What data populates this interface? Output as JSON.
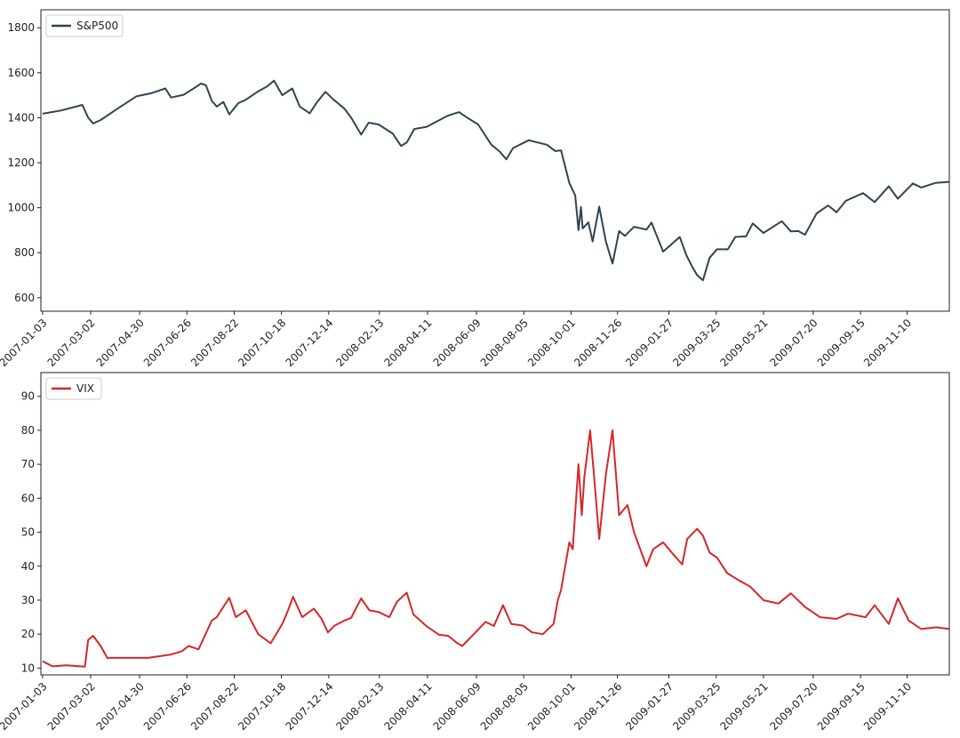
{
  "chart_data": [
    {
      "type": "line",
      "title": "",
      "xlabel": "",
      "ylabel": "",
      "color": "#2f4550",
      "ylim": [
        540,
        1880
      ],
      "yticks": [
        600,
        800,
        1000,
        1200,
        1400,
        1600,
        1800
      ],
      "xlim": [
        "2007-01-01",
        "2009-12-31"
      ],
      "xticks": [
        "2007-01-03",
        "2007-03-02",
        "2007-04-30",
        "2007-06-26",
        "2007-08-22",
        "2007-10-18",
        "2007-12-14",
        "2008-02-13",
        "2008-04-11",
        "2008-06-09",
        "2008-08-05",
        "2008-10-01",
        "2008-11-26",
        "2009-01-27",
        "2009-03-25",
        "2009-05-21",
        "2009-07-20",
        "2009-09-15",
        "2009-11-10"
      ],
      "legend": {
        "position": "upper-left",
        "entries": [
          "S&P500"
        ]
      },
      "series": [
        {
          "name": "S&P500",
          "x": [
            "2007-01-03",
            "2007-01-25",
            "2007-02-20",
            "2007-02-27",
            "2007-03-05",
            "2007-03-14",
            "2007-04-02",
            "2007-04-26",
            "2007-05-15",
            "2007-05-31",
            "2007-06-07",
            "2007-06-22",
            "2007-07-06",
            "2007-07-13",
            "2007-07-19",
            "2007-07-26",
            "2007-08-01",
            "2007-08-09",
            "2007-08-16",
            "2007-08-27",
            "2007-09-05",
            "2007-09-19",
            "2007-10-01",
            "2007-10-09",
            "2007-10-19",
            "2007-10-31",
            "2007-11-09",
            "2007-11-21",
            "2007-11-30",
            "2007-12-10",
            "2007-12-20",
            "2008-01-02",
            "2008-01-10",
            "2008-01-22",
            "2008-01-31",
            "2008-02-12",
            "2008-02-29",
            "2008-03-10",
            "2008-03-17",
            "2008-03-26",
            "2008-04-10",
            "2008-04-28",
            "2008-05-06",
            "2008-05-19",
            "2008-05-29",
            "2008-06-11",
            "2008-06-27",
            "2008-07-07",
            "2008-07-15",
            "2008-07-23",
            "2008-08-11",
            "2008-08-22",
            "2008-09-02",
            "2008-09-12",
            "2008-09-19",
            "2008-09-29",
            "2008-10-06",
            "2008-10-10",
            "2008-10-13",
            "2008-10-15",
            "2008-10-22",
            "2008-10-27",
            "2008-11-04",
            "2008-11-12",
            "2008-11-20",
            "2008-11-28",
            "2008-12-05",
            "2008-12-16",
            "2008-12-31",
            "2009-01-06",
            "2009-01-20",
            "2009-02-09",
            "2009-02-17",
            "2009-02-23",
            "2009-03-02",
            "2009-03-09",
            "2009-03-17",
            "2009-03-26",
            "2009-04-08",
            "2009-04-17",
            "2009-04-30",
            "2009-05-08",
            "2009-05-21",
            "2009-06-12",
            "2009-06-23",
            "2009-07-02",
            "2009-07-10",
            "2009-07-24",
            "2009-08-07",
            "2009-08-17",
            "2009-08-28",
            "2009-09-18",
            "2009-10-02",
            "2009-10-19",
            "2009-10-30",
            "2009-11-17",
            "2009-11-27",
            "2009-12-14",
            "2009-12-31"
          ],
          "values": [
            1418,
            1432,
            1457,
            1400,
            1375,
            1390,
            1437,
            1495,
            1510,
            1530,
            1490,
            1502,
            1535,
            1552,
            1545,
            1475,
            1450,
            1470,
            1415,
            1465,
            1480,
            1515,
            1540,
            1565,
            1500,
            1530,
            1450,
            1420,
            1470,
            1515,
            1480,
            1440,
            1400,
            1325,
            1378,
            1370,
            1330,
            1275,
            1290,
            1350,
            1360,
            1395,
            1410,
            1425,
            1400,
            1370,
            1280,
            1250,
            1215,
            1265,
            1300,
            1290,
            1280,
            1252,
            1255,
            1110,
            1055,
            900,
            1003,
            908,
            935,
            850,
            1005,
            850,
            752,
            896,
            875,
            915,
            903,
            934,
            805,
            870,
            790,
            745,
            700,
            677,
            778,
            815,
            815,
            870,
            873,
            930,
            888,
            940,
            895,
            896,
            880,
            975,
            1010,
            980,
            1030,
            1065,
            1025,
            1095,
            1040,
            1108,
            1090,
            1110,
            1115
          ]
        }
      ]
    },
    {
      "type": "line",
      "title": "",
      "xlabel": "",
      "ylabel": "",
      "color": "#d62728",
      "ylim": [
        8,
        97
      ],
      "yticks": [
        10,
        20,
        30,
        40,
        50,
        60,
        70,
        80,
        90
      ],
      "xlim": [
        "2007-01-01",
        "2009-12-31"
      ],
      "xticks": [
        "2007-01-03",
        "2007-03-02",
        "2007-04-30",
        "2007-06-26",
        "2007-08-22",
        "2007-10-18",
        "2007-12-14",
        "2008-02-13",
        "2008-04-11",
        "2008-06-09",
        "2008-08-05",
        "2008-10-01",
        "2008-11-26",
        "2009-01-27",
        "2009-03-25",
        "2009-05-21",
        "2009-07-20",
        "2009-09-15",
        "2009-11-10"
      ],
      "legend": {
        "position": "upper-left",
        "entries": [
          "VIX"
        ]
      },
      "series": [
        {
          "name": "VIX",
          "x": [
            "2007-01-03",
            "2007-01-15",
            "2007-02-01",
            "2007-02-23",
            "2007-02-27",
            "2007-03-05",
            "2007-03-14",
            "2007-03-22",
            "2007-04-10",
            "2007-05-10",
            "2007-06-07",
            "2007-06-20",
            "2007-06-28",
            "2007-07-10",
            "2007-07-26",
            "2007-08-01",
            "2007-08-16",
            "2007-08-24",
            "2007-09-05",
            "2007-09-20",
            "2007-10-05",
            "2007-10-19",
            "2007-10-26",
            "2007-11-01",
            "2007-11-12",
            "2007-11-26",
            "2007-12-05",
            "2007-12-13",
            "2007-12-21",
            "2008-01-02",
            "2008-01-10",
            "2008-01-22",
            "2008-02-01",
            "2008-02-12",
            "2008-02-25",
            "2008-03-05",
            "2008-03-17",
            "2008-03-25",
            "2008-04-10",
            "2008-04-25",
            "2008-05-06",
            "2008-05-16",
            "2008-05-23",
            "2008-06-05",
            "2008-06-20",
            "2008-06-30",
            "2008-07-11",
            "2008-07-21",
            "2008-08-04",
            "2008-08-15",
            "2008-08-28",
            "2008-09-10",
            "2008-09-15",
            "2008-09-19",
            "2008-09-29",
            "2008-10-03",
            "2008-10-10",
            "2008-10-14",
            "2008-10-17",
            "2008-10-24",
            "2008-10-29",
            "2008-11-04",
            "2008-11-12",
            "2008-11-20",
            "2008-11-28",
            "2008-12-08",
            "2008-12-16",
            "2008-12-31",
            "2009-01-08",
            "2009-01-20",
            "2009-02-03",
            "2009-02-12",
            "2009-02-18",
            "2009-03-02",
            "2009-03-09",
            "2009-03-17",
            "2009-03-26",
            "2009-04-07",
            "2009-04-20",
            "2009-05-05",
            "2009-05-21",
            "2009-06-08",
            "2009-06-23",
            "2009-07-10",
            "2009-07-28",
            "2009-08-17",
            "2009-08-31",
            "2009-09-21",
            "2009-10-02",
            "2009-10-19",
            "2009-10-30",
            "2009-11-12",
            "2009-11-27",
            "2009-12-15",
            "2009-12-31"
          ],
          "values": [
            12,
            10.5,
            10.8,
            10.4,
            18.3,
            19.5,
            16.5,
            13,
            13,
            13,
            14,
            15,
            16.5,
            15.5,
            24,
            25,
            30.7,
            25,
            27,
            20,
            17.3,
            23,
            27,
            31,
            25,
            27.5,
            24.6,
            20.5,
            22.5,
            24,
            24.8,
            30.5,
            27,
            26.5,
            25,
            29.5,
            32.2,
            25.8,
            22.3,
            19.8,
            19.5,
            17.5,
            16.5,
            19.8,
            23.6,
            22.4,
            28.5,
            23,
            22.5,
            20.5,
            20,
            23,
            30,
            33,
            47,
            45,
            70,
            55,
            66,
            80,
            66,
            48,
            67,
            80,
            55,
            58,
            50,
            40,
            45,
            47,
            43,
            40.5,
            48,
            51,
            49,
            44,
            42.5,
            38,
            36,
            34,
            30,
            29,
            32,
            28,
            25,
            24.5,
            26,
            25,
            28.5,
            23,
            30.5,
            24,
            21.5,
            22,
            21.5
          ]
        }
      ]
    }
  ]
}
